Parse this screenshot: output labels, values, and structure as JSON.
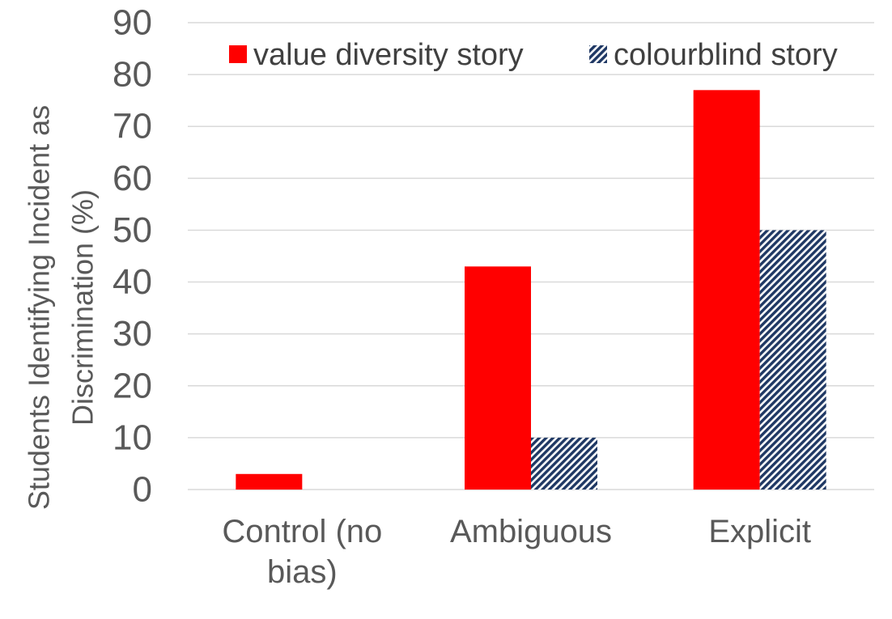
{
  "chart_data": {
    "type": "bar",
    "categories": [
      [
        "Control (no",
        "bias)"
      ],
      [
        "Ambiguous"
      ],
      [
        "Explicit"
      ]
    ],
    "series": [
      {
        "name": "value diversity story",
        "values": [
          3,
          43,
          77
        ],
        "color": "#ff0000",
        "pattern": "solid"
      },
      {
        "name": "colourblind story",
        "values": [
          0,
          10,
          50
        ],
        "color": "#1f3864",
        "pattern": "diagonal-hatch"
      }
    ],
    "ylabel": [
      "Students Identifying Incident as",
      "Discrimination (%)"
    ],
    "ylim": [
      0,
      90
    ],
    "yticks": [
      0,
      10,
      20,
      30,
      40,
      50,
      60,
      70,
      80,
      90
    ],
    "grid": true,
    "legend_position": "top-right"
  }
}
